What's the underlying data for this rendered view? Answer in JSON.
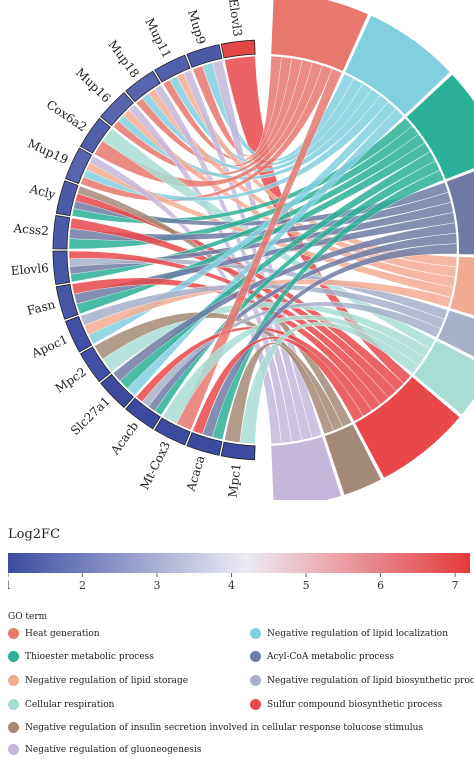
{
  "chart_data": {
    "type": "chord",
    "genes": [
      {
        "name": "Elovl3",
        "log2fc": 7.0
      },
      {
        "name": "Mup9",
        "log2fc": 1.3
      },
      {
        "name": "Mup11",
        "log2fc": 1.4
      },
      {
        "name": "Mup18",
        "log2fc": 1.5
      },
      {
        "name": "Mup16",
        "log2fc": 1.5
      },
      {
        "name": "Cox6a2",
        "log2fc": 1.4
      },
      {
        "name": "Mup19",
        "log2fc": 1.5
      },
      {
        "name": "Acly",
        "log2fc": 1.3
      },
      {
        "name": "Acss2",
        "log2fc": 1.3
      },
      {
        "name": "Elovl6",
        "log2fc": 1.2
      },
      {
        "name": "Fasn",
        "log2fc": 1.2
      },
      {
        "name": "Apoc1",
        "log2fc": 1.1
      },
      {
        "name": "Mpc2",
        "log2fc": 1.1
      },
      {
        "name": "Slc27a1",
        "log2fc": 1.0
      },
      {
        "name": "Acacb",
        "log2fc": 1.0
      },
      {
        "name": "Mt-Cox3",
        "log2fc": 1.0
      },
      {
        "name": "Acaca",
        "log2fc": 1.0
      },
      {
        "name": "Mpc1",
        "log2fc": 1.0
      }
    ],
    "terms": [
      {
        "name": "Heat generation",
        "color": "#e8786e"
      },
      {
        "name": "Negative regulation of lipid localization",
        "color": "#82cfe0"
      },
      {
        "name": "Thioester metabolic process",
        "color": "#2ab096"
      },
      {
        "name": "Acyl-CoA metabolic process",
        "color": "#6f7ba5"
      },
      {
        "name": "Negative regulation of lipid storage",
        "color": "#f2ab93"
      },
      {
        "name": "Negative regulation of lipid biosynthetic process",
        "color": "#a6b0c8"
      },
      {
        "name": "Cellular respiration",
        "color": "#a8ddd4"
      },
      {
        "name": "Sulfur compound biosynthetic process",
        "color": "#e8484a"
      },
      {
        "name": "Negative regulation of insulin secretion involved in cellular response tolucose stimulus",
        "color": "#a48a76"
      },
      {
        "name": "Negative regulation of gluoneogenesis",
        "color": "#c5b7dc"
      }
    ],
    "links": [
      [
        "Elovl3",
        7
      ],
      [
        "Mup9",
        0
      ],
      [
        "Mup9",
        1
      ],
      [
        "Mup9",
        9
      ],
      [
        "Mup11",
        0
      ],
      [
        "Mup11",
        1
      ],
      [
        "Mup11",
        4
      ],
      [
        "Mup11",
        9
      ],
      [
        "Mup18",
        0
      ],
      [
        "Mup18",
        1
      ],
      [
        "Mup18",
        4
      ],
      [
        "Mup18",
        9
      ],
      [
        "Mup16",
        0
      ],
      [
        "Mup16",
        1
      ],
      [
        "Mup16",
        4
      ],
      [
        "Mup16",
        9
      ],
      [
        "Cox6a2",
        0
      ],
      [
        "Cox6a2",
        6
      ],
      [
        "Mup19",
        0
      ],
      [
        "Mup19",
        1
      ],
      [
        "Mup19",
        4
      ],
      [
        "Mup19",
        9
      ],
      [
        "Acly",
        2
      ],
      [
        "Acly",
        3
      ],
      [
        "Acly",
        7
      ],
      [
        "Acly",
        8
      ],
      [
        "Acss2",
        2
      ],
      [
        "Acss2",
        3
      ],
      [
        "Acss2",
        7
      ],
      [
        "Elovl6",
        2
      ],
      [
        "Elovl6",
        3
      ],
      [
        "Elovl6",
        5
      ],
      [
        "Elovl6",
        7
      ],
      [
        "Fasn",
        2
      ],
      [
        "Fasn",
        3
      ],
      [
        "Fasn",
        7
      ],
      [
        "Apoc1",
        1
      ],
      [
        "Apoc1",
        4
      ],
      [
        "Apoc1",
        5
      ],
      [
        "Mpc2",
        6
      ],
      [
        "Mpc2",
        8
      ],
      [
        "Slc27a1",
        1
      ],
      [
        "Slc27a1",
        2
      ],
      [
        "Slc27a1",
        3
      ],
      [
        "Acacb",
        2
      ],
      [
        "Acacb",
        3
      ],
      [
        "Acacb",
        5
      ],
      [
        "Acacb",
        7
      ],
      [
        "Mt-Cox3",
        0
      ],
      [
        "Mt-Cox3",
        6
      ],
      [
        "Acaca",
        2
      ],
      [
        "Acaca",
        3
      ],
      [
        "Acaca",
        7
      ],
      [
        "Mpc1",
        6
      ],
      [
        "Mpc1",
        8
      ]
    ],
    "colorbar": {
      "title": "Log2FC",
      "ticks": [
        "1",
        "2",
        "3",
        "4",
        "5",
        "6",
        "7"
      ],
      "min": 1,
      "mid": 4.2,
      "max": 7.2,
      "low_color": "#3c4ba0",
      "mid_color": "#ecebf4",
      "high_color": "#e53a3a"
    },
    "legend_title": "GO term"
  }
}
